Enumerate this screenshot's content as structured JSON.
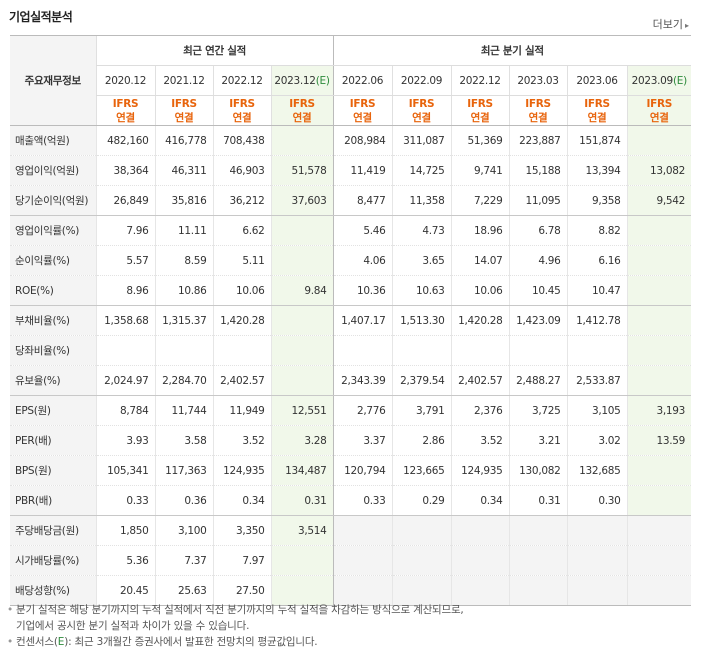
{
  "header": {
    "title": "기업실적분석",
    "more_label": "더보기",
    "more_arrow": "▸"
  },
  "table": {
    "row_header_label": "주요재무정보",
    "group_labels": {
      "annual": "최근 연간 실적",
      "quarterly": "최근 분기 실적"
    },
    "annual_periods": [
      "2020.12",
      "2021.12",
      "2022.12",
      "2023.12"
    ],
    "quarter_periods": [
      "2022.06",
      "2022.09",
      "2022.12",
      "2023.03",
      "2023.06",
      "2023.09"
    ],
    "estimate_mark": "(E)",
    "basis_line1": "IFRS",
    "basis_line2": "연결",
    "rows": [
      {
        "label": "매출액(억원)",
        "annual": [
          "482,160",
          "416,778",
          "708,438",
          ""
        ],
        "quarter": [
          "208,984",
          "311,087",
          "51,369",
          "223,887",
          "151,874",
          ""
        ]
      },
      {
        "label": "영업이익(억원)",
        "annual": [
          "38,364",
          "46,311",
          "46,903",
          "51,578"
        ],
        "quarter": [
          "11,419",
          "14,725",
          "9,741",
          "15,188",
          "13,394",
          "13,082"
        ]
      },
      {
        "label": "당기순이익(억원)",
        "annual": [
          "26,849",
          "35,816",
          "36,212",
          "37,603"
        ],
        "quarter": [
          "8,477",
          "11,358",
          "7,229",
          "11,095",
          "9,358",
          "9,542"
        ]
      },
      {
        "label": "영업이익률(%)",
        "annual": [
          "7.96",
          "11.11",
          "6.62",
          ""
        ],
        "quarter": [
          "5.46",
          "4.73",
          "18.96",
          "6.78",
          "8.82",
          ""
        ]
      },
      {
        "label": "순이익률(%)",
        "annual": [
          "5.57",
          "8.59",
          "5.11",
          ""
        ],
        "quarter": [
          "4.06",
          "3.65",
          "14.07",
          "4.96",
          "6.16",
          ""
        ]
      },
      {
        "label": "ROE(%)",
        "annual": [
          "8.96",
          "10.86",
          "10.06",
          "9.84"
        ],
        "quarter": [
          "10.36",
          "10.63",
          "10.06",
          "10.45",
          "10.47",
          ""
        ]
      },
      {
        "label": "부채비율(%)",
        "annual": [
          "1,358.68",
          "1,315.37",
          "1,420.28",
          ""
        ],
        "quarter": [
          "1,407.17",
          "1,513.30",
          "1,420.28",
          "1,423.09",
          "1,412.78",
          ""
        ]
      },
      {
        "label": "당좌비율(%)",
        "annual": [
          "",
          "",
          "",
          ""
        ],
        "quarter": [
          "",
          "",
          "",
          "",
          "",
          ""
        ]
      },
      {
        "label": "유보율(%)",
        "annual": [
          "2,024.97",
          "2,284.70",
          "2,402.57",
          ""
        ],
        "quarter": [
          "2,343.39",
          "2,379.54",
          "2,402.57",
          "2,488.27",
          "2,533.87",
          ""
        ]
      },
      {
        "label": "EPS(원)",
        "annual": [
          "8,784",
          "11,744",
          "11,949",
          "12,551"
        ],
        "quarter": [
          "2,776",
          "3,791",
          "2,376",
          "3,725",
          "3,105",
          "3,193"
        ]
      },
      {
        "label": "PER(배)",
        "annual": [
          "3.93",
          "3.58",
          "3.52",
          "3.28"
        ],
        "quarter": [
          "3.37",
          "2.86",
          "3.52",
          "3.21",
          "3.02",
          "13.59"
        ]
      },
      {
        "label": "BPS(원)",
        "annual": [
          "105,341",
          "117,363",
          "124,935",
          "134,487"
        ],
        "quarter": [
          "120,794",
          "123,665",
          "124,935",
          "130,082",
          "132,685",
          ""
        ]
      },
      {
        "label": "PBR(배)",
        "annual": [
          "0.33",
          "0.36",
          "0.34",
          "0.31"
        ],
        "quarter": [
          "0.33",
          "0.29",
          "0.34",
          "0.31",
          "0.30",
          ""
        ]
      },
      {
        "label": "주당배당금(원)",
        "annual": [
          "1,850",
          "3,100",
          "3,350",
          "3,514"
        ],
        "quarter": null
      },
      {
        "label": "시가배당률(%)",
        "annual": [
          "5.36",
          "7.37",
          "7.97",
          ""
        ],
        "quarter": null
      },
      {
        "label": "배당성향(%)",
        "annual": [
          "20.45",
          "25.63",
          "27.50",
          ""
        ],
        "quarter": null
      }
    ]
  },
  "notes": {
    "bullet": "•",
    "line1": "분기 실적은 해당 분기까지의 누적 실적에서 직전 분기까지의 누적 실적을 차감하는 방식으로 계산되므로,",
    "line2": "기업에서 공시한 분기 실적과 차이가 있을 수 있습니다.",
    "line3_pre": "컨센서스(",
    "line3_e": "E",
    "line3_post": "): 최근 3개월간 증권사에서 발표한 전망치의 평균값입니다."
  },
  "colors": {
    "estimate_bg": "#f1f8ea",
    "label_bg": "#f4f4f4",
    "ifrs_orange": "#e8640c",
    "estimate_green": "#2e8b3c"
  }
}
